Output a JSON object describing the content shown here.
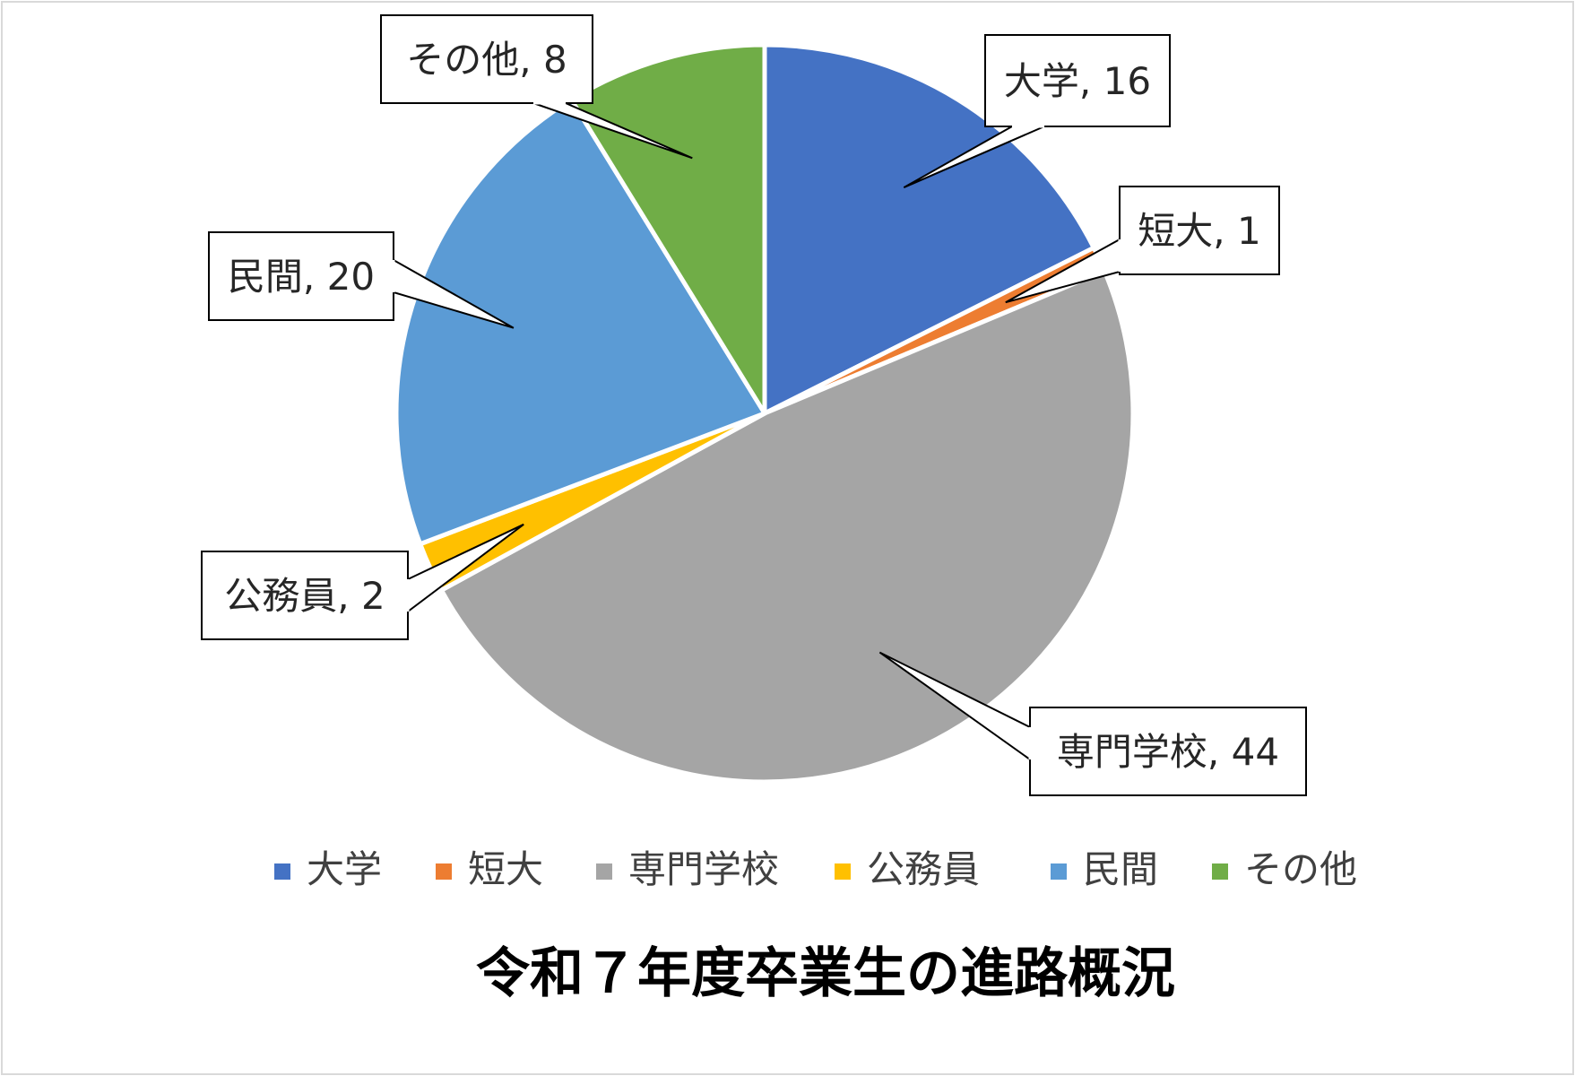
{
  "chart_data": {
    "type": "pie",
    "title": "令和７年度卒業生の進路概況",
    "categories": [
      "大学",
      "短大",
      "専門学校",
      "公務員",
      "民間",
      "その他"
    ],
    "values": [
      16,
      1,
      44,
      2,
      20,
      8
    ],
    "colors": [
      "#4472C4",
      "#ED7D31",
      "#A5A5A5",
      "#FFC000",
      "#5B9BD5",
      "#70AD47"
    ],
    "data_labels": [
      "大学, 16",
      "短大, 1",
      "専門学校, 44",
      "公務員, 2",
      "民間, 20",
      "その他, 8"
    ],
    "legend": {
      "position": "bottom",
      "entries": [
        "大学",
        "短大",
        "専門学校",
        "公務員",
        "民間",
        "その他"
      ]
    },
    "start_angle": "12 o'clock",
    "direction": "clockwise"
  }
}
